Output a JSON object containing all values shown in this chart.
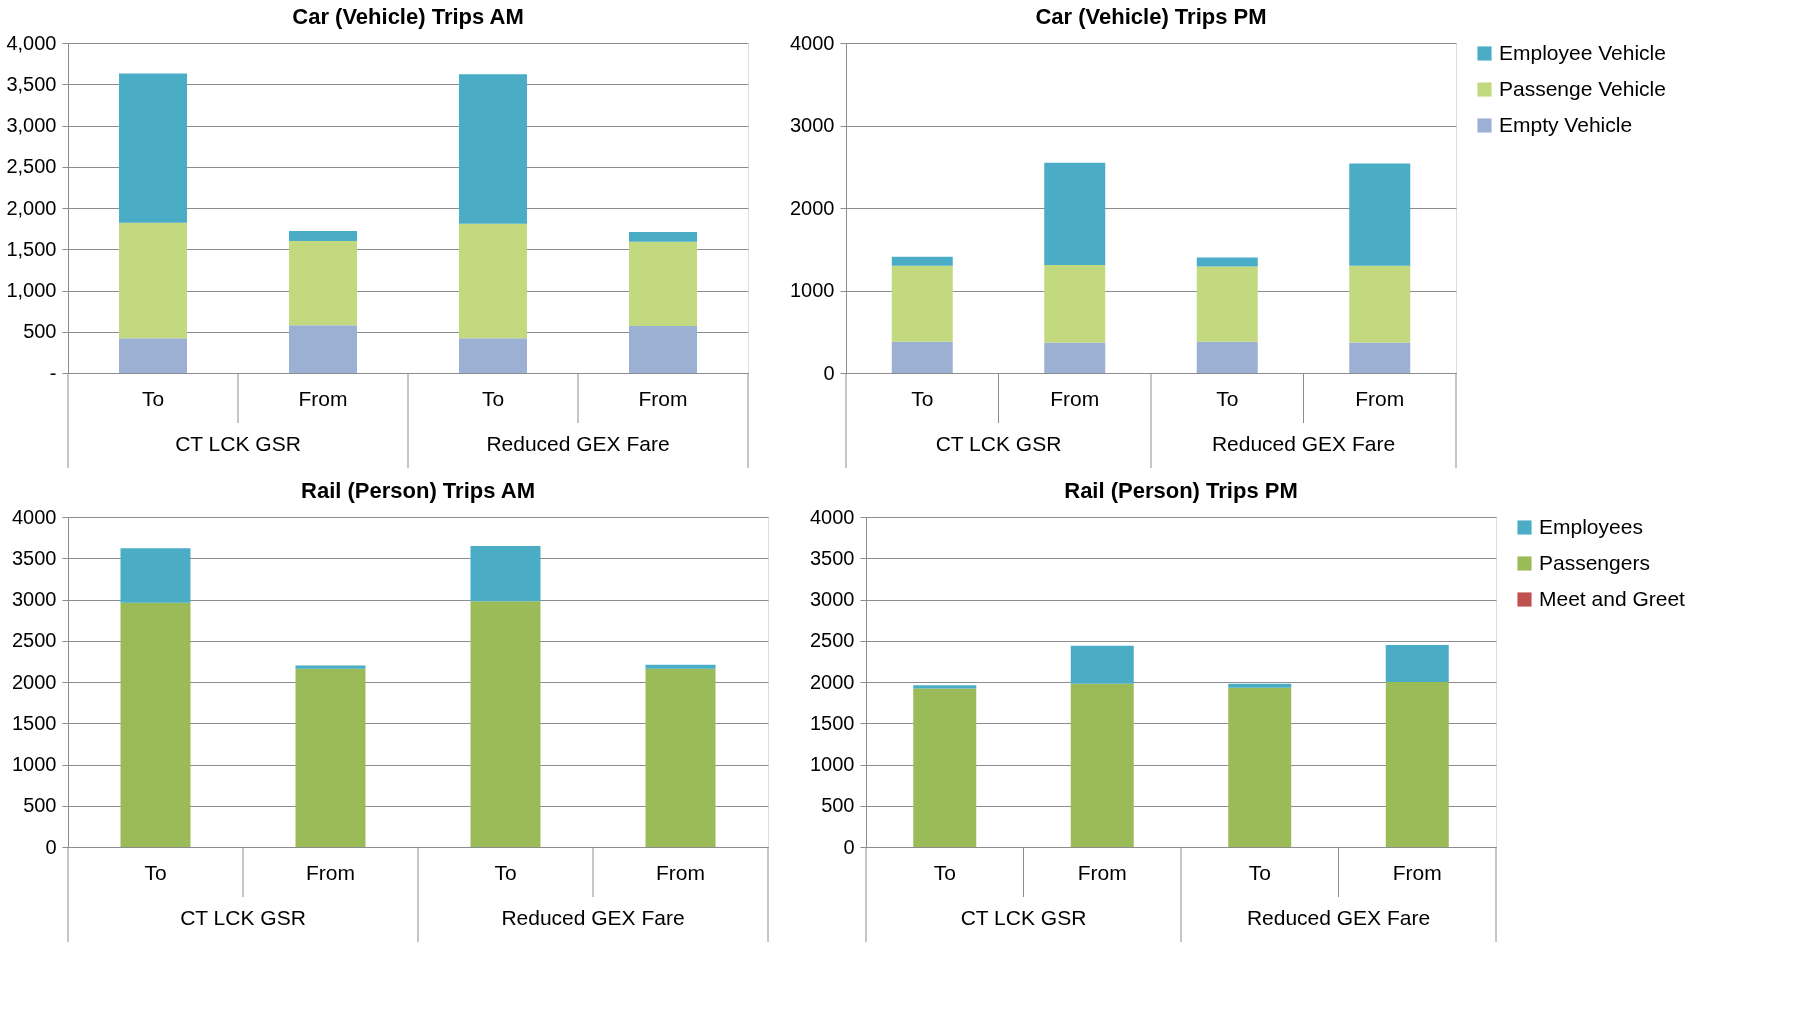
{
  "chart_data": [
    {
      "type": "bar",
      "stacked": true,
      "title": "Car (Vehicle) Trips AM",
      "categories": [
        "To",
        "From",
        "To",
        "From"
      ],
      "annotations": [
        "CT LCK GSR",
        "Reduced GEX Fare"
      ],
      "ylim": [
        0,
        4000
      ],
      "yticks": [
        {
          "value": 0,
          "label": "-"
        },
        500,
        {
          "value": 1000,
          "label": "1,000"
        },
        {
          "value": 1500,
          "label": "1,500"
        },
        {
          "value": 2000,
          "label": "2,000"
        },
        {
          "value": 2500,
          "label": "2,500"
        },
        {
          "value": 3000,
          "label": "3,000"
        },
        {
          "value": 3500,
          "label": "3,500"
        },
        {
          "value": 4000,
          "label": "4,000"
        }
      ],
      "grid": "y",
      "legend": false,
      "series": [
        {
          "color": "#9cb0d4",
          "values": [
            420,
            580,
            420,
            570
          ]
        },
        {
          "color": "#c3d97f",
          "values": [
            1400,
            1020,
            1390,
            1020
          ]
        },
        {
          "color": "#4bacc6",
          "values": [
            1810,
            120,
            1810,
            120
          ]
        }
      ]
    },
    {
      "type": "bar",
      "stacked": true,
      "title": "Car (Vehicle) Trips PM",
      "categories": [
        "To",
        "From",
        "To",
        "From"
      ],
      "annotations": [
        "CT LCK GSR",
        "Reduced GEX Fare"
      ],
      "ylim": [
        0,
        4000
      ],
      "yticks": [
        0,
        1000,
        2000,
        3000,
        4000
      ],
      "grid": "y",
      "legend": "right",
      "series": [
        {
          "name": "Empty Vehicle",
          "color": "#9cb0d4",
          "values": [
            380,
            370,
            380,
            370
          ]
        },
        {
          "name": "Passenge Vehicle",
          "color": "#c3d97f",
          "values": [
            920,
            940,
            910,
            930
          ]
        },
        {
          "name": "Employee Vehicle",
          "color": "#4bacc6",
          "values": [
            110,
            1240,
            110,
            1240
          ]
        }
      ]
    },
    {
      "type": "bar",
      "stacked": true,
      "title": "Rail (Person) Trips AM",
      "categories": [
        "To",
        "From",
        "To",
        "From"
      ],
      "annotations": [
        "CT LCK GSR",
        "Reduced GEX Fare"
      ],
      "ylim": [
        0,
        4000
      ],
      "yticks": [
        0,
        500,
        1000,
        1500,
        2000,
        2500,
        3000,
        3500,
        4000
      ],
      "grid": "y",
      "legend": false,
      "series": [
        {
          "color": "#9bbb59",
          "values": [
            2960,
            2160,
            2980,
            2160
          ]
        },
        {
          "color": "#4bacc6",
          "values": [
            660,
            40,
            670,
            50
          ]
        }
      ]
    },
    {
      "type": "bar",
      "stacked": true,
      "title": "Rail (Person) Trips PM",
      "categories": [
        "To",
        "From",
        "To",
        "From"
      ],
      "annotations": [
        "CT LCK GSR",
        "Reduced GEX Fare"
      ],
      "ylim": [
        0,
        4000
      ],
      "yticks": [
        0,
        500,
        1000,
        1500,
        2000,
        2500,
        3000,
        3500,
        4000
      ],
      "grid": "y",
      "legend": "right",
      "series": [
        {
          "name": "Meet and Greet",
          "color": "#c0504d",
          "values": [
            0,
            0,
            0,
            0
          ]
        },
        {
          "name": "Passengers",
          "color": "#9bbb59",
          "values": [
            1920,
            1980,
            1930,
            2000
          ]
        },
        {
          "name": "Employees",
          "color": "#4bacc6",
          "values": [
            40,
            460,
            50,
            450
          ]
        }
      ]
    }
  ]
}
